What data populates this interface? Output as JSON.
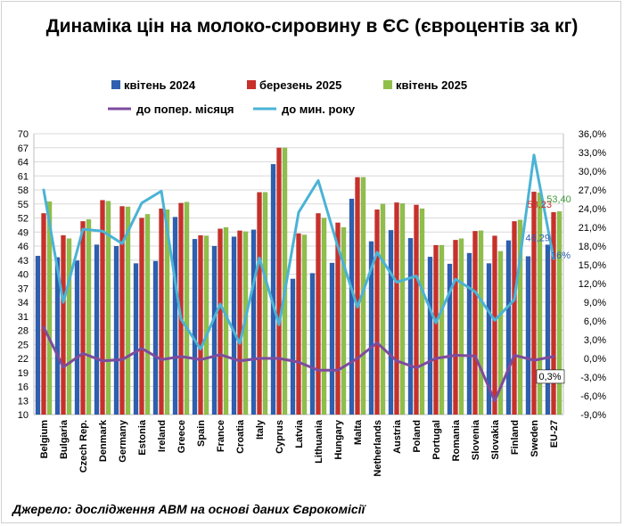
{
  "chart_data": {
    "type": "bar",
    "title": "Динаміка цін на молоко-сировину в ЄС (євроцентів за кг)",
    "source": "Джерело: дослідження АВМ на основі даних Єврокомісії",
    "categories": [
      "Belgium",
      "Bulgaria",
      "Czech Rep.",
      "Denmark",
      "Germany",
      "Estonia",
      "Ireland",
      "Greece",
      "Spain",
      "France",
      "Croatia",
      "Italy",
      "Cyprus",
      "Latvia",
      "Lithuania",
      "Hungary",
      "Malta",
      "Netherlands",
      "Austria",
      "Poland",
      "Portugal",
      "Romania",
      "Slovenia",
      "Slovakia",
      "Finland",
      "Sweden",
      "EU-27"
    ],
    "y_left": {
      "min": 10,
      "max": 70,
      "ticks": [
        "70",
        "67",
        "64",
        "61",
        "58",
        "55",
        "52",
        "49",
        "46",
        "43",
        "40",
        "37",
        "34",
        "31",
        "28",
        "25",
        "22",
        "19",
        "16",
        "13",
        "10"
      ]
    },
    "y_right": {
      "min": -9,
      "max": 36,
      "ticks": [
        "36,0%",
        "33,0%",
        "30,0%",
        "27,0%",
        "24,0%",
        "21,0%",
        "18,0%",
        "15,0%",
        "12,0%",
        "9,0%",
        "6,0%",
        "3,0%",
        "0,0%",
        "-3,0%",
        "-6,0%",
        "-9,0%"
      ]
    },
    "grid": true,
    "legend_position": "top",
    "series": [
      {
        "name": "квітень 2024",
        "axis": "left",
        "kind": "bar",
        "color": "#2e5fb0",
        "values": [
          43.9,
          43.6,
          42.9,
          46.3,
          46.0,
          42.3,
          42.8,
          52.2,
          47.5,
          46.0,
          48.0,
          49.5,
          63.5,
          39.0,
          40.2,
          42.4,
          56.1,
          47.0,
          49.4,
          47.7,
          43.7,
          42.2,
          44.5,
          42.3,
          47.2,
          43.8,
          46.29
        ]
      },
      {
        "name": "березень 2025",
        "axis": "left",
        "kind": "bar",
        "color": "#c8302a",
        "values": [
          53.0,
          48.3,
          51.3,
          55.8,
          54.5,
          52.0,
          54.0,
          55.2,
          48.3,
          49.7,
          49.3,
          57.5,
          67.0,
          48.7,
          53.0,
          51.0,
          60.7,
          53.8,
          55.3,
          54.8,
          46.2,
          47.3,
          49.2,
          48.2,
          51.3,
          57.6,
          53.23
        ]
      },
      {
        "name": "квітень 2025",
        "axis": "left",
        "kind": "bar",
        "color": "#8fbf4a",
        "values": [
          55.5,
          47.6,
          51.7,
          55.6,
          54.4,
          52.8,
          53.8,
          55.4,
          48.2,
          50.0,
          49.1,
          57.5,
          67.0,
          48.4,
          52.0,
          50.0,
          60.7,
          55.0,
          55.1,
          54.0,
          46.2,
          47.6,
          49.3,
          44.9,
          51.6,
          57.4,
          53.4
        ]
      },
      {
        "name": "до попер. місяця",
        "axis": "right",
        "kind": "line",
        "color": "#7e4b9e",
        "values": [
          5.0,
          -1.4,
          0.8,
          -0.4,
          -0.2,
          1.6,
          -0.2,
          0.3,
          -0.2,
          0.6,
          -0.4,
          0.0,
          0.0,
          -0.6,
          -1.9,
          -1.9,
          0.0,
          2.5,
          -0.4,
          -1.5,
          0.0,
          0.5,
          0.4,
          -6.8,
          0.5,
          -0.3,
          0.3
        ]
      },
      {
        "name": "до мин. року",
        "axis": "right",
        "kind": "line",
        "color": "#4ab3d6",
        "values": [
          27.0,
          9.0,
          20.7,
          20.4,
          18.4,
          24.9,
          26.8,
          6.3,
          1.5,
          8.7,
          2.4,
          16.1,
          5.4,
          23.4,
          28.5,
          17.9,
          8.2,
          17.0,
          12.2,
          13.2,
          5.7,
          12.7,
          10.7,
          6.1,
          9.4,
          32.6,
          16.0
        ]
      }
    ],
    "annotations": [
      {
        "series": "квітень 2024",
        "text": "46,29",
        "color": "#2e5fb0"
      },
      {
        "series": "березень 2025",
        "text": "53,23",
        "color": "#c8302a"
      },
      {
        "series": "квітень 2025",
        "text": "53,40",
        "color": "#3f9a3a"
      },
      {
        "series": "до мин. року",
        "text": "16%",
        "color": "#2e5fb0"
      },
      {
        "series": "до попер. місяця",
        "text": "0,3%",
        "color": "#000000"
      }
    ]
  }
}
